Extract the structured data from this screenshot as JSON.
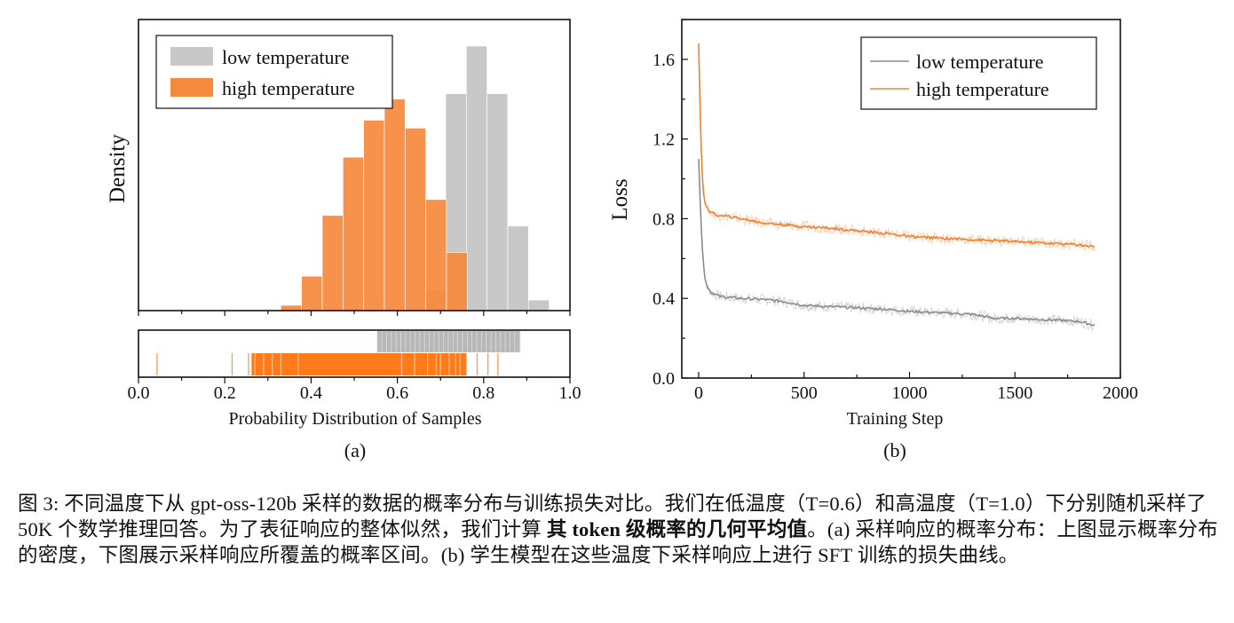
{
  "figure": {
    "panel_a": {
      "label": "(a)"
    },
    "panel_b": {
      "label": "(b)"
    }
  },
  "chart_data": [
    {
      "type": "bar",
      "name": "histogram",
      "title": "",
      "xlabel": "Probability Distribution of Samples",
      "ylabel": "Density",
      "xlim": [
        0.0,
        1.0
      ],
      "xticks": [
        "0.0",
        "0.2",
        "0.4",
        "0.6",
        "0.8",
        "1.0"
      ],
      "legend": {
        "position": "top-left",
        "entries": [
          "low temperature",
          "high temperature"
        ]
      },
      "bin_width": 0.0478,
      "series": [
        {
          "name": "low temperature",
          "color": "#c8c8c8",
          "bin_starts": [
            0.664,
            0.712,
            0.76,
            0.808,
            0.856,
            0.904
          ],
          "values": [
            0.08,
            0.82,
            1.0,
            0.82,
            0.32,
            0.04
          ]
        },
        {
          "name": "high temperature",
          "color": "#f5893c",
          "bin_starts": [
            0.33,
            0.378,
            0.426,
            0.474,
            0.522,
            0.57,
            0.618,
            0.666,
            0.714
          ],
          "values": [
            0.02,
            0.13,
            0.36,
            0.58,
            0.72,
            0.8,
            0.69,
            0.42,
            0.22
          ]
        }
      ]
    },
    {
      "type": "strip",
      "name": "rug-plot",
      "series": [
        {
          "name": "low temperature",
          "color": "#b8b8b8",
          "ranges": [
            [
              0.553,
              0.885
            ]
          ]
        },
        {
          "name": "high temperature",
          "color": "#ff7a1a",
          "ranges": [
            [
              0.262,
              0.76
            ]
          ],
          "outliers": [
            0.043,
            0.217,
            0.255,
            0.785,
            0.81,
            0.833
          ]
        }
      ]
    },
    {
      "type": "line",
      "name": "loss-curve",
      "title": "",
      "xlabel": "Training Step",
      "ylabel": "Loss",
      "xlim": [
        -80,
        2000
      ],
      "ylim": [
        0.0,
        1.8
      ],
      "xticks": [
        "0",
        "500",
        "1000",
        "1500",
        "2000"
      ],
      "yticks": [
        "0.0",
        "0.4",
        "0.8",
        "1.2",
        "1.6"
      ],
      "legend": {
        "position": "top-right",
        "entries": [
          "low temperature",
          "high temperature"
        ]
      },
      "series": [
        {
          "name": "low temperature",
          "color": "#8c8c8c",
          "x": [
            0,
            10,
            20,
            30,
            40,
            60,
            80,
            100,
            150,
            200,
            300,
            400,
            500,
            600,
            700,
            800,
            900,
            1000,
            1100,
            1200,
            1300,
            1400,
            1500,
            1600,
            1700,
            1800,
            1880
          ],
          "y": [
            1.1,
            0.8,
            0.6,
            0.5,
            0.46,
            0.43,
            0.42,
            0.41,
            0.405,
            0.4,
            0.395,
            0.385,
            0.365,
            0.36,
            0.355,
            0.35,
            0.345,
            0.335,
            0.33,
            0.325,
            0.32,
            0.3,
            0.3,
            0.295,
            0.29,
            0.285,
            0.265
          ]
        },
        {
          "name": "high temperature",
          "color": "#f08030",
          "x": [
            0,
            10,
            20,
            30,
            40,
            60,
            80,
            100,
            150,
            200,
            300,
            400,
            500,
            600,
            700,
            800,
            900,
            1000,
            1100,
            1200,
            1300,
            1400,
            1500,
            1600,
            1700,
            1800,
            1880
          ],
          "y": [
            1.68,
            1.2,
            0.95,
            0.88,
            0.85,
            0.83,
            0.82,
            0.815,
            0.81,
            0.8,
            0.78,
            0.77,
            0.76,
            0.755,
            0.745,
            0.735,
            0.725,
            0.71,
            0.705,
            0.7,
            0.695,
            0.69,
            0.685,
            0.68,
            0.675,
            0.67,
            0.66
          ]
        }
      ]
    }
  ],
  "caption": {
    "lead": "图 3: 不同温度下从 gpt-oss-120b 采样的数据的概率分布与训练损失对比。我们在低温度（T=0.6）和高温度（T=1.0）下分别随机采样了 50K 个数学推理回答。为了表征响应的整体似然，我们计算 ",
    "bold": "其 token 级概率的几何平均值",
    "tail": "。(a) 采样响应的概率分布：上图显示概率分布的密度，下图展示采样响应所覆盖的概率区间。(b) 学生模型在这些温度下采样响应上进行 SFT 训练的损失曲线。"
  }
}
